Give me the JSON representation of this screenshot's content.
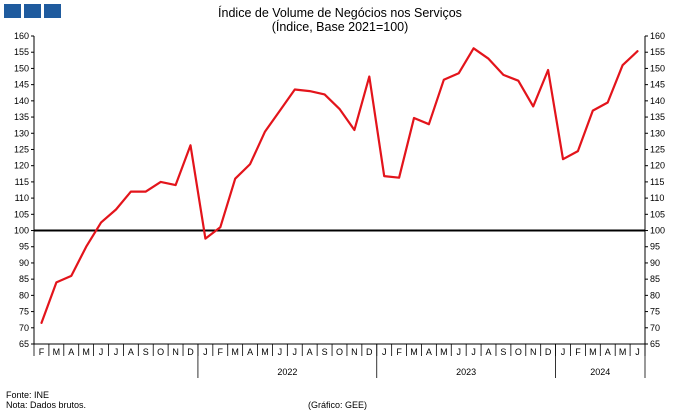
{
  "header": {
    "title": "Índice de Volume de Negócios nos Serviços",
    "subtitle": "(Índice, Base 2021=100)"
  },
  "footer": {
    "source": "Fonte: INE",
    "note": "Nota: Dados brutos.",
    "credit": "(Gráfico:  GEE)"
  },
  "colors": {
    "series": "#e3141b",
    "reference": "#000000",
    "logo": "#1f5b9e"
  },
  "chart_data": {
    "type": "line",
    "title": "Índice de Volume de Negócios nos Serviços",
    "subtitle": "(Índice, Base 2021=100)",
    "x": [
      "2021-02",
      "2021-03",
      "2021-04",
      "2021-05",
      "2021-06",
      "2021-07",
      "2021-08",
      "2021-09",
      "2021-10",
      "2021-11",
      "2021-12",
      "2022-01",
      "2022-02",
      "2022-03",
      "2022-04",
      "2022-05",
      "2022-06",
      "2022-07",
      "2022-08",
      "2022-09",
      "2022-10",
      "2022-11",
      "2022-12",
      "2023-01",
      "2023-02",
      "2023-03",
      "2023-04",
      "2023-05",
      "2023-06",
      "2023-07",
      "2023-08",
      "2023-09",
      "2023-10",
      "2023-11",
      "2023-12",
      "2024-01",
      "2024-02",
      "2024-03",
      "2024-04",
      "2024-05",
      "2024-06"
    ],
    "month_labels": [
      "F",
      "M",
      "A",
      "M",
      "J",
      "J",
      "A",
      "S",
      "O",
      "N",
      "D",
      "J",
      "F",
      "M",
      "A",
      "M",
      "J",
      "J",
      "A",
      "S",
      "O",
      "N",
      "D",
      "J",
      "F",
      "M",
      "A",
      "M",
      "J",
      "J",
      "A",
      "S",
      "O",
      "N",
      "D",
      "J",
      "F",
      "M",
      "A",
      "M",
      "J"
    ],
    "year_labels": [
      {
        "label": "2022",
        "start": 11,
        "end": 22
      },
      {
        "label": "2023",
        "start": 23,
        "end": 34
      },
      {
        "label": "2024",
        "start": 35,
        "end": 40
      }
    ],
    "series": [
      {
        "values": [
          71.5,
          84,
          86,
          95,
          102.5,
          106.5,
          112,
          112,
          115,
          114,
          126.3,
          97.5,
          101,
          116,
          120.5,
          130.5,
          137,
          143.5,
          143,
          142,
          137.5,
          131,
          147.5,
          116.8,
          116.3,
          134.7,
          132.8,
          146.5,
          148.5,
          156.2,
          153,
          148,
          146.2,
          138.3,
          149.5,
          122,
          124.5,
          137,
          139.5,
          151,
          155.3
        ]
      }
    ],
    "reference_line": 100,
    "ylim": [
      65,
      160
    ],
    "ytick_step": 5,
    "y_axis_both_sides": true,
    "grid": false,
    "legend": "none"
  }
}
